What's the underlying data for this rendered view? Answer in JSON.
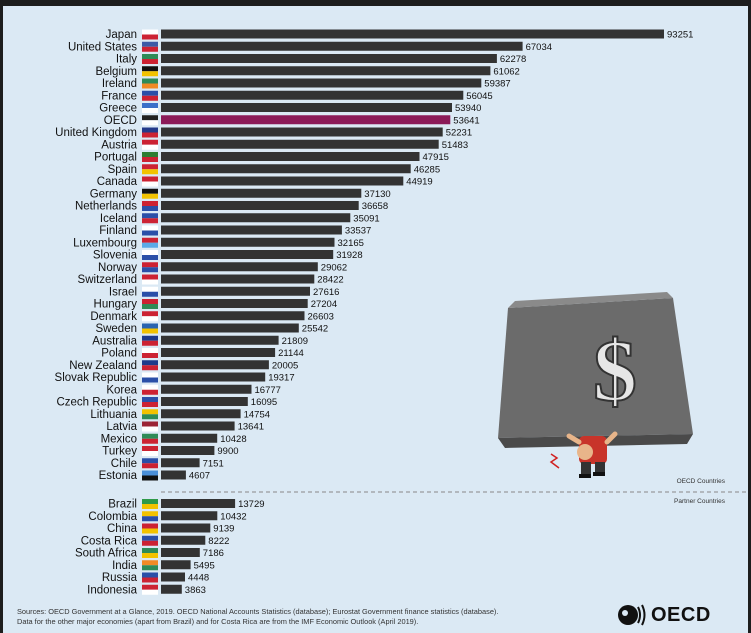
{
  "chart_data": {
    "type": "bar",
    "orientation": "horizontal",
    "sections": [
      {
        "label": "OECD Countries",
        "bars": [
          {
            "country": "Japan",
            "value": 93251
          },
          {
            "country": "United States",
            "value": 67034
          },
          {
            "country": "Italy",
            "value": 62278
          },
          {
            "country": "Belgium",
            "value": 61062
          },
          {
            "country": "Ireland",
            "value": 59387
          },
          {
            "country": "France",
            "value": 56045
          },
          {
            "country": "Greece",
            "value": 53940
          },
          {
            "country": "OECD",
            "value": 53641,
            "highlight": true
          },
          {
            "country": "United Kingdom",
            "value": 52231
          },
          {
            "country": "Austria",
            "value": 51483
          },
          {
            "country": "Portugal",
            "value": 47915
          },
          {
            "country": "Spain",
            "value": 46285
          },
          {
            "country": "Canada",
            "value": 44919
          },
          {
            "country": "Germany",
            "value": 37130
          },
          {
            "country": "Netherlands",
            "value": 36658
          },
          {
            "country": "Iceland",
            "value": 35091
          },
          {
            "country": "Finland",
            "value": 33537
          },
          {
            "country": "Luxembourg",
            "value": 32165
          },
          {
            "country": "Slovenia",
            "value": 31928
          },
          {
            "country": "Norway",
            "value": 29062
          },
          {
            "country": "Switzerland",
            "value": 28422
          },
          {
            "country": "Israel",
            "value": 27616
          },
          {
            "country": "Hungary",
            "value": 27204
          },
          {
            "country": "Denmark",
            "value": 26603
          },
          {
            "country": "Sweden",
            "value": 25542
          },
          {
            "country": "Australia",
            "value": 21809
          },
          {
            "country": "Poland",
            "value": 21144
          },
          {
            "country": "New Zealand",
            "value": 20005
          },
          {
            "country": "Slovak Republic",
            "value": 19317
          },
          {
            "country": "Korea",
            "value": 16777
          },
          {
            "country": "Czech Republic",
            "value": 16095
          },
          {
            "country": "Lithuania",
            "value": 14754
          },
          {
            "country": "Latvia",
            "value": 13641
          },
          {
            "country": "Mexico",
            "value": 10428
          },
          {
            "country": "Turkey",
            "value": 9900
          },
          {
            "country": "Chile",
            "value": 7151
          },
          {
            "country": "Estonia",
            "value": 4607
          }
        ]
      },
      {
        "label": "Partner Countries",
        "bars": [
          {
            "country": "Brazil",
            "value": 13729
          },
          {
            "country": "Colombia",
            "value": 10432
          },
          {
            "country": "China",
            "value": 9139
          },
          {
            "country": "Costa Rica",
            "value": 8222
          },
          {
            "country": "South Africa",
            "value": 7186
          },
          {
            "country": "India",
            "value": 5495
          },
          {
            "country": "Russia",
            "value": 4448
          },
          {
            "country": "Indonesia",
            "value": 3863
          }
        ]
      }
    ],
    "colors": {
      "bar": "#333333",
      "highlight": "#8b1a58"
    }
  },
  "footer": {
    "line1": "Sources: OECD Government at a Glance, 2019. OECD National Accounts Statistics (database); Eurostat Government finance statistics (database).",
    "line2": "Data for the other major economies (apart from Brazil) and for Costa Rica are from the IMF Economic Outlook (April 2019)."
  },
  "logo": {
    "text": "OECD"
  },
  "illustration": {
    "symbol": "$"
  }
}
